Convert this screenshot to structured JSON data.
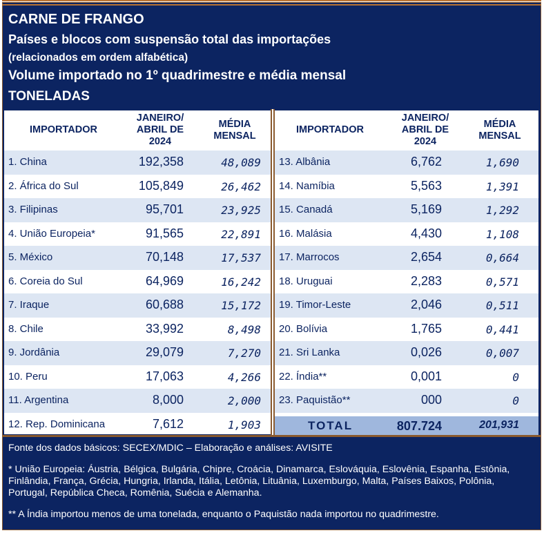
{
  "header": {
    "line1": "CARNE DE FRANGO",
    "line2": "Países e blocos com suspensão total das importações",
    "line3": "(relacionados em ordem alfabética)",
    "line4": "Volume importado no 1º quadrimestre e média mensal",
    "line5": "TONELADAS"
  },
  "columns": {
    "importer": "IMPORTADOR",
    "period_l1": "JANEIRO/",
    "period_l2": "ABRIL DE",
    "period_l3": "2024",
    "avg_l1": "MÉDIA",
    "avg_l2": "MENSAL"
  },
  "left_rows": [
    {
      "name": "1.  China",
      "vol": "192,358",
      "avg": "48,089"
    },
    {
      "name": "2.  África do Sul",
      "vol": "105,849",
      "avg": "26,462"
    },
    {
      "name": "3.  Filipinas",
      "vol": "95,701",
      "avg": "23,925"
    },
    {
      "name": "4.  União Europeia*",
      "vol": "91,565",
      "avg": "22,891"
    },
    {
      "name": "5.  México",
      "vol": "70,148",
      "avg": "17,537"
    },
    {
      "name": "6.  Coreia do Sul",
      "vol": "64,969",
      "avg": "16,242"
    },
    {
      "name": "7.  Iraque",
      "vol": "60,688",
      "avg": "15,172"
    },
    {
      "name": "8.  Chile",
      "vol": "33,992",
      "avg": "8,498"
    },
    {
      "name": "9.  Jordânia",
      "vol": "29,079",
      "avg": "7,270"
    },
    {
      "name": "10. Peru",
      "vol": "17,063",
      "avg": "4,266"
    },
    {
      "name": "11. Argentina",
      "vol": "8,000",
      "avg": "2,000"
    },
    {
      "name": "12. Rep. Dominicana",
      "vol": "7,612",
      "avg": "1,903"
    }
  ],
  "right_rows": [
    {
      "name": "13.  Albânia",
      "vol": "6,762",
      "avg": "1,690"
    },
    {
      "name": "14.  Namíbia",
      "vol": "5,563",
      "avg": "1,391"
    },
    {
      "name": "15.  Canadá",
      "vol": "5,169",
      "avg": "1,292"
    },
    {
      "name": "16.  Malásia",
      "vol": "4,430",
      "avg": "1,108"
    },
    {
      "name": "17.  Marrocos",
      "vol": "2,654",
      "avg": "0,664"
    },
    {
      "name": "18.  Uruguai",
      "vol": "2,283",
      "avg": "0,571"
    },
    {
      "name": "19.  Timor-Leste",
      "vol": "2,046",
      "avg": "0,511"
    },
    {
      "name": "20.  Bolívia",
      "vol": "1,765",
      "avg": "0,441"
    },
    {
      "name": "21.  Sri Lanka",
      "vol": "0,026",
      "avg": "0,007"
    },
    {
      "name": "22.  Índia**",
      "vol": "0,001",
      "avg": "0"
    },
    {
      "name": "23. Paquistão**",
      "vol": "000",
      "avg": "0"
    }
  ],
  "total": {
    "label": "TOTAL",
    "vol": "807.724",
    "avg": "201,931"
  },
  "footer": {
    "source": "Fonte dos dados básicos: SECEX/MDIC – Elaboração e análises: AVISITE",
    "note1": "* União Europeia: Áustria, Bélgica, Bulgária, Chipre, Croácia, Dinamarca, Eslováquia, Eslovênia, Espanha, Estônia, Finlândia, França, Grécia, Hungria, Irlanda, Itália, Letônia, Lituânia, Luxemburgo, Malta, Países Baixos, Polônia, Portugal, República Checa, Romênia, Suécia e Alemanha.",
    "note2": "** A Índia importou menos de uma tonelada, enquanto o Paquistão nada importou no quadrimestre."
  },
  "colors": {
    "navy": "#0c2461",
    "stripe": "#dde6f3",
    "total_bg": "#9fb7dd",
    "border": "#8a5a2e"
  }
}
